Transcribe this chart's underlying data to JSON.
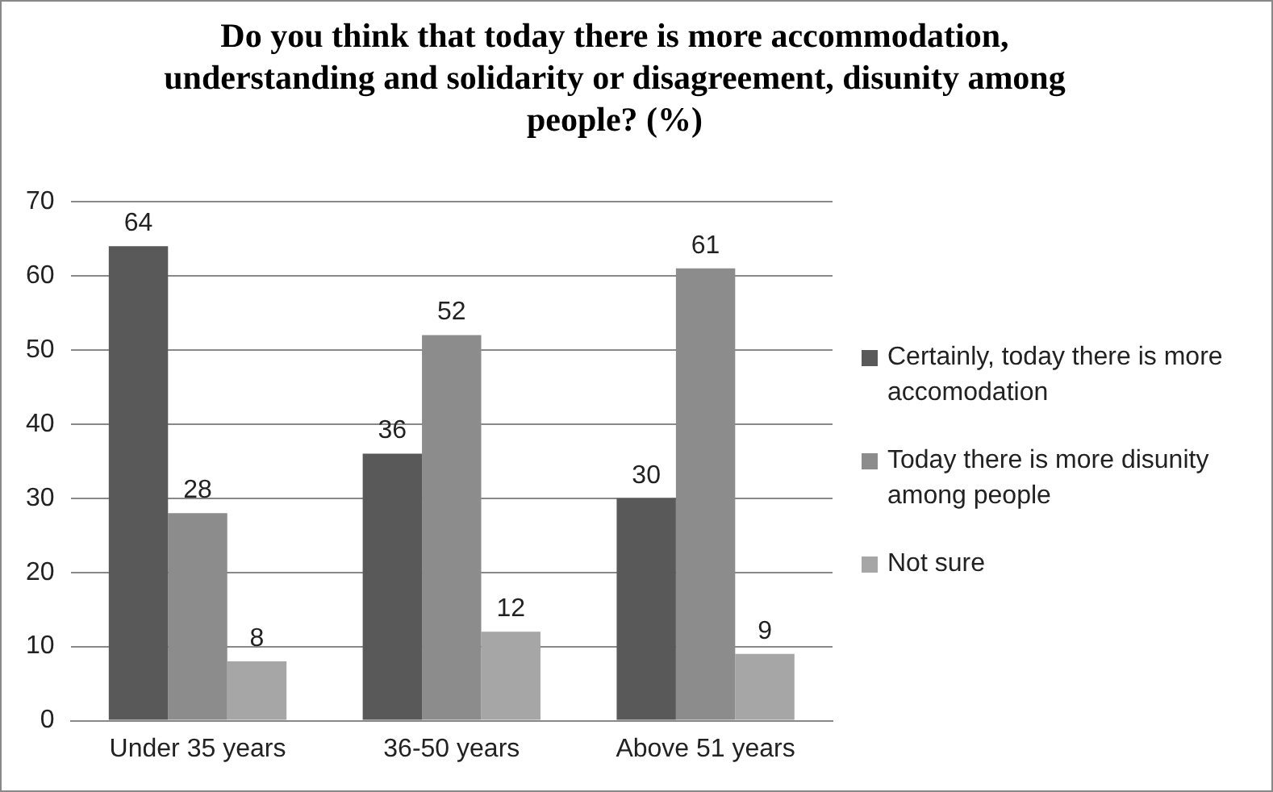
{
  "chart_data": {
    "type": "bar",
    "title": "Do you think that today there is more accommodation, understanding and solidarity or disagreement, disunity among people? (%)",
    "categories": [
      "Under 35 years",
      "36-50 years",
      "Above 51 years"
    ],
    "series": [
      {
        "name": "Certainly, today there is more accomodation",
        "color": "#595959",
        "values": [
          64,
          36,
          30
        ]
      },
      {
        "name": "Today there is more disunity among people",
        "color": "#8c8c8c",
        "values": [
          28,
          52,
          61
        ]
      },
      {
        "name": "Not sure",
        "color": "#a6a6a6",
        "values": [
          8,
          12,
          9
        ]
      }
    ],
    "ylim": [
      0,
      70
    ],
    "yticks": [
      0,
      10,
      20,
      30,
      40,
      50,
      60,
      70
    ],
    "grid": "y",
    "legend": "right",
    "data_labels": true
  }
}
